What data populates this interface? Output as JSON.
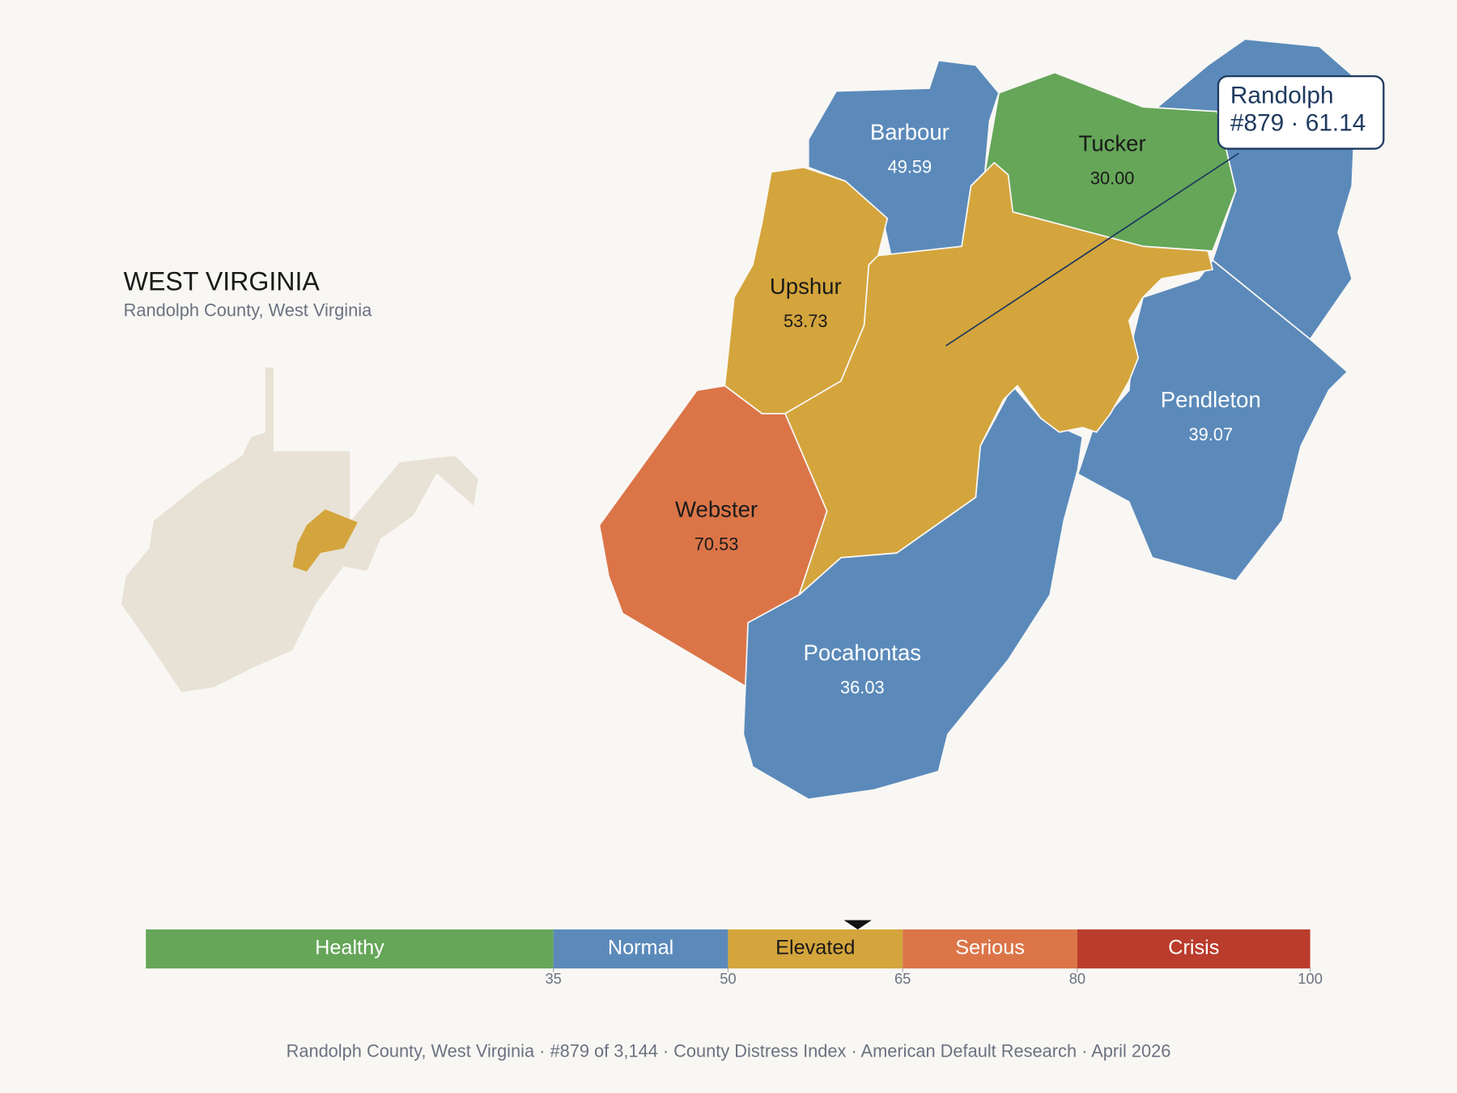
{
  "header": {
    "title": "WEST VIRGINIA",
    "subtitle": "Randolph County, West Virginia"
  },
  "counties": [
    {
      "name": "Randolph",
      "value": 61.14
    },
    {
      "name": "Barbour",
      "value": 49.59
    },
    {
      "name": "Tucker",
      "value": 30.0,
      "value_label": "30.00"
    },
    {
      "name": "Upshur",
      "value": 53.73
    },
    {
      "name": "Webster",
      "value": 70.53
    },
    {
      "name": "Pendleton",
      "value": 39.07
    },
    {
      "name": "Pocahontas",
      "value": 36.03
    }
  ],
  "callout": {
    "name": "Randolph",
    "detail": "#879 · 61.14"
  },
  "scale": {
    "lim": [
      0,
      100
    ],
    "ticks": [
      35,
      50,
      65,
      80,
      100
    ],
    "bands": [
      {
        "label": "Healthy",
        "from": 0,
        "to": 35,
        "color": "#65a658"
      },
      {
        "label": "Normal",
        "from": 35,
        "to": 50,
        "color": "#5b8aba"
      },
      {
        "label": "Elevated",
        "from": 50,
        "to": 65,
        "color": "#d4a53c"
      },
      {
        "label": "Serious",
        "from": 65,
        "to": 80,
        "color": "#db7548"
      },
      {
        "label": "Crisis",
        "from": 80,
        "to": 100,
        "color": "#ba3c2c"
      }
    ]
  },
  "footer": "Randolph County, West Virginia  ·  #879 of 3,144  ·  County Distress Index  ·  American Default Research  ·  April 2026"
}
